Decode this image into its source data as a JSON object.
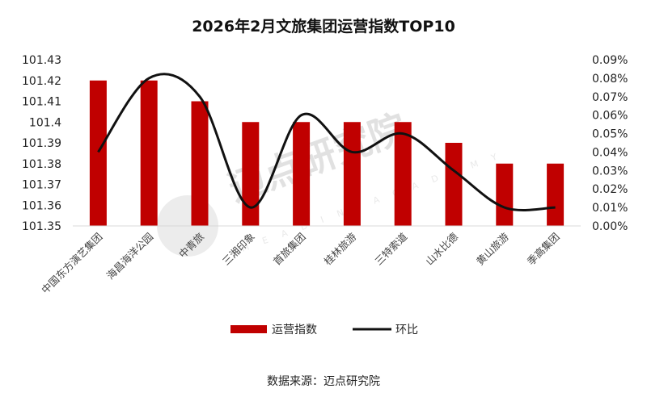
{
  "chart_data": {
    "type": "bar",
    "title": "2026年2月文旅集团运营指数TOP10",
    "categories": [
      "中国东方演艺集团",
      "海昌海洋公园",
      "中青旅",
      "三湘印象",
      "首旅集团",
      "桂林旅游",
      "三特索道",
      "山水比德",
      "黄山旅游",
      "季高集团"
    ],
    "series": [
      {
        "name": "运营指数",
        "kind": "bar",
        "axis": "left",
        "color": "#c00000",
        "values": [
          101.42,
          101.42,
          101.41,
          101.4,
          101.4,
          101.4,
          101.4,
          101.39,
          101.38,
          101.38
        ]
      },
      {
        "name": "环比",
        "kind": "line",
        "axis": "right",
        "color": "#111111",
        "values": [
          0.04,
          0.08,
          0.07,
          0.01,
          0.06,
          0.04,
          0.05,
          0.03,
          0.01,
          0.01
        ]
      }
    ],
    "ylim_left": [
      101.35,
      101.43
    ],
    "yticks_left": [
      "101.43",
      "101.42",
      "101.41",
      "101.4",
      "101.39",
      "101.38",
      "101.37",
      "101.36",
      "101.35"
    ],
    "ylim_right": [
      0.0,
      0.09
    ],
    "yticks_right": [
      "0.09%",
      "0.08%",
      "0.07%",
      "0.06%",
      "0.05%",
      "0.04%",
      "0.03%",
      "0.02%",
      "0.01%",
      "0.00%"
    ],
    "legend": {
      "position": "bottom",
      "items": [
        "运营指数",
        "环比"
      ]
    },
    "grid": false
  },
  "watermark": {
    "text": "迈点研究院",
    "sub": "MEADIN ACADEMY"
  },
  "source": "数据来源：迈点研究院",
  "colors": {
    "bar": "#c00000",
    "line": "#111111"
  }
}
